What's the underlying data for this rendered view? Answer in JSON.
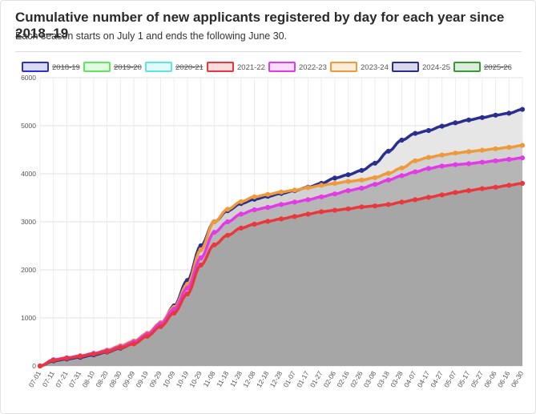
{
  "header": {
    "title": "Cumulative number of new applicants registered by day for each year since 2018–19",
    "subtitle": "Each season starts on July 1 and ends the following June 30."
  },
  "chart_data": {
    "type": "area",
    "title": "Cumulative number of new applicants registered by day for each year since 2018–19",
    "subtitle": "Each season starts on July 1 and ends the following June 30.",
    "ylim": [
      0,
      6000
    ],
    "yticks": [
      "0",
      "1000",
      "2000",
      "3000",
      "4000",
      "5000",
      "6000"
    ],
    "xlabels": [
      "07-01",
      "07-11",
      "07-21",
      "07-31",
      "08-10",
      "08-20",
      "08-30",
      "09-09",
      "09-19",
      "09-29",
      "10-09",
      "10-19",
      "10-29",
      "11-08",
      "11-18",
      "11-28",
      "12-08",
      "12-18",
      "12-28",
      "01-07",
      "01-17",
      "01-27",
      "02-06",
      "02-16",
      "02-26",
      "03-08",
      "03-18",
      "03-28",
      "04-07",
      "04-17",
      "04-27",
      "05-07",
      "05-17",
      "05-27",
      "06-06",
      "06-16",
      "06-30"
    ],
    "legend": [
      {
        "label": "2018-19",
        "color": "#2f2fd6",
        "hidden": true
      },
      {
        "label": "2019-20",
        "color": "#5ee85e",
        "hidden": true
      },
      {
        "label": "2020-21",
        "color": "#5fe3e3",
        "hidden": true
      },
      {
        "label": "2021-22",
        "color": "#e8383d",
        "hidden": false
      },
      {
        "label": "2022-23",
        "color": "#e23be6",
        "hidden": false
      },
      {
        "label": "2023-24",
        "color": "#ee9a3a",
        "hidden": false
      },
      {
        "label": "2024-25",
        "color": "#2a2f8f",
        "hidden": false
      },
      {
        "label": "2025-26",
        "color": "#3a9a3a",
        "hidden": true
      }
    ],
    "series": [
      {
        "name": "2021-22",
        "color": "#e8383d",
        "fill": "#a6a6a6",
        "values": [
          0,
          120,
          160,
          200,
          250,
          300,
          380,
          460,
          620,
          820,
          1100,
          1500,
          2100,
          2520,
          2720,
          2870,
          2950,
          3010,
          3060,
          3110,
          3160,
          3210,
          3240,
          3270,
          3310,
          3330,
          3360,
          3410,
          3460,
          3510,
          3560,
          3610,
          3650,
          3690,
          3720,
          3760,
          3800
        ]
      },
      {
        "name": "2022-23",
        "color": "#e23be6",
        "fill": "#b6b6b6",
        "values": [
          0,
          130,
          170,
          210,
          260,
          320,
          400,
          500,
          660,
          880,
          1180,
          1620,
          2250,
          2780,
          3000,
          3160,
          3250,
          3300,
          3360,
          3410,
          3460,
          3520,
          3580,
          3650,
          3700,
          3780,
          3870,
          3960,
          4040,
          4110,
          4160,
          4190,
          4210,
          4240,
          4270,
          4300,
          4330
        ]
      },
      {
        "name": "2023-24",
        "color": "#ee9a3a",
        "fill": "#d2d2d2",
        "values": [
          0,
          125,
          165,
          210,
          260,
          330,
          420,
          520,
          680,
          900,
          1220,
          1700,
          2420,
          3000,
          3260,
          3420,
          3520,
          3570,
          3620,
          3660,
          3710,
          3760,
          3800,
          3840,
          3870,
          3920,
          4010,
          4120,
          4270,
          4340,
          4390,
          4430,
          4460,
          4490,
          4520,
          4550,
          4590
        ]
      },
      {
        "name": "2024-25",
        "color": "#2a2f8f",
        "fill": "#e6e6e6",
        "values": [
          0,
          105,
          145,
          180,
          230,
          290,
          370,
          470,
          620,
          860,
          1250,
          1780,
          2500,
          3000,
          3230,
          3380,
          3470,
          3530,
          3590,
          3650,
          3720,
          3800,
          3910,
          3980,
          4070,
          4220,
          4470,
          4700,
          4840,
          4900,
          4990,
          5060,
          5120,
          5170,
          5220,
          5260,
          5340
        ]
      }
    ]
  }
}
